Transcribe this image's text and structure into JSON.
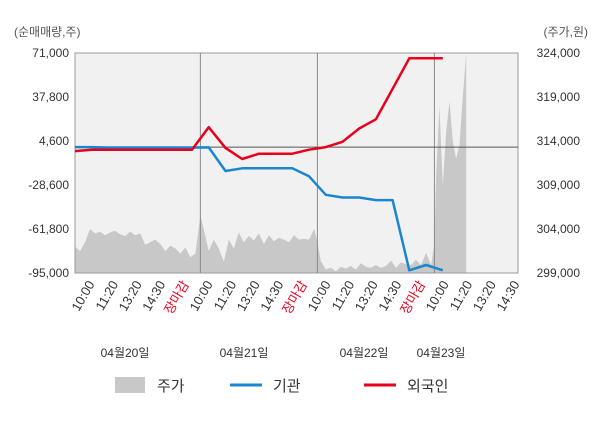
{
  "chart_data": {
    "type": "line",
    "left_axis_unit": "(순매매량,주)",
    "right_axis_unit": "(주가,원)",
    "left_ticks": [
      "71,000",
      "37,800",
      "4,600",
      "-28,600",
      "-61,800",
      "-95,000"
    ],
    "left_tick_values": [
      71000,
      37800,
      4600,
      -28600,
      -61800,
      -95000
    ],
    "right_ticks": [
      "324,000",
      "319,000",
      "314,000",
      "309,000",
      "304,000",
      "299,000"
    ],
    "right_tick_values": [
      324000,
      319000,
      314000,
      309000,
      304000,
      299000
    ],
    "left_range": [
      -95000,
      71000
    ],
    "right_range": [
      299000,
      324000
    ],
    "x_tick_labels": [
      "10:00",
      "11:20",
      "13:20",
      "14:30",
      "장마감",
      "10:00",
      "11:20",
      "13:20",
      "14:30",
      "장마감",
      "10:00",
      "11:20",
      "13:20",
      "14:30",
      "장마감",
      "10:00",
      "11:20",
      "13:20",
      "14:30"
    ],
    "x_tick_red": [
      false,
      false,
      false,
      false,
      true,
      false,
      false,
      false,
      false,
      true,
      false,
      false,
      false,
      false,
      true,
      false,
      false,
      false,
      false
    ],
    "day_labels": [
      "04월20일",
      "04월21일",
      "04월22일",
      "04월23일"
    ],
    "x_domain": [
      0,
      26.5
    ],
    "day_boundaries": [
      7.5,
      14.5,
      21.5
    ],
    "zero_line_value": 0,
    "series": [
      {
        "name": "기관",
        "color": "#1a86d0",
        "axis": "left",
        "x": [
          0,
          1,
          2,
          3,
          4,
          5,
          6,
          7,
          8,
          9,
          10,
          11,
          12,
          13,
          14,
          15,
          16,
          17,
          18,
          19,
          20,
          21,
          22
        ],
        "values": [
          0,
          0,
          -300,
          -300,
          -300,
          -300,
          -300,
          -300,
          -200,
          -18000,
          -16000,
          -16000,
          -16000,
          -16000,
          -22000,
          -36000,
          -38000,
          -38000,
          -40000,
          -40000,
          -93000,
          -89000,
          -93000
        ]
      },
      {
        "name": "외국인",
        "color": "#e8001c",
        "axis": "left",
        "x": [
          0,
          1,
          2,
          3,
          4,
          5,
          6,
          7,
          8,
          9,
          10,
          11,
          12,
          13,
          14,
          15,
          16,
          17,
          18,
          19,
          20,
          21,
          22
        ],
        "values": [
          -3000,
          -2000,
          -2000,
          -2000,
          -2000,
          -2000,
          -2000,
          -2000,
          15000,
          -600,
          -9000,
          -5000,
          -5000,
          -5000,
          -2000,
          0,
          4000,
          14000,
          21000,
          44000,
          67000,
          67000,
          67000
        ]
      },
      {
        "name": "주가",
        "color": "#c8c8c8",
        "axis": "right",
        "type": "area",
        "x": [
          0,
          0.3,
          0.6,
          0.9,
          1.2,
          1.5,
          1.8,
          2.1,
          2.4,
          2.7,
          3.0,
          3.3,
          3.6,
          3.9,
          4.2,
          4.5,
          4.8,
          5.1,
          5.4,
          5.7,
          6.0,
          6.3,
          6.6,
          6.9,
          7.2,
          7.5,
          7.7,
          8.0,
          8.3,
          8.6,
          8.9,
          9.2,
          9.5,
          9.8,
          10.1,
          10.4,
          10.7,
          11.0,
          11.3,
          11.6,
          11.9,
          12.2,
          12.5,
          12.8,
          13.1,
          13.4,
          13.7,
          14.0,
          14.3,
          14.5,
          14.7,
          15.0,
          15.3,
          15.6,
          15.9,
          16.2,
          16.5,
          16.8,
          17.1,
          17.4,
          17.7,
          18.0,
          18.3,
          18.6,
          18.9,
          19.2,
          19.5,
          19.8,
          20.1,
          20.4,
          20.7,
          21.0,
          21.3,
          21.5,
          21.6,
          21.8,
          22.0,
          22.2,
          22.4,
          22.6,
          22.8,
          23.0,
          23.2,
          23.4
        ],
        "values": [
          302000,
          301500,
          302500,
          304000,
          303500,
          303700,
          303300,
          303600,
          303800,
          303400,
          303200,
          303700,
          303300,
          303500,
          302200,
          302500,
          302800,
          302300,
          301500,
          302100,
          301800,
          301200,
          301900,
          300800,
          301200,
          305500,
          304000,
          301500,
          302800,
          301800,
          300300,
          302800,
          301800,
          303600,
          302500,
          303200,
          302700,
          303500,
          302300,
          303300,
          302600,
          303000,
          302800,
          302500,
          303300,
          302800,
          302900,
          302800,
          304000,
          302600,
          300400,
          299400,
          299600,
          299200,
          299700,
          299500,
          299800,
          299400,
          300100,
          299700,
          299600,
          299900,
          299600,
          299800,
          300400,
          299600,
          300200,
          300000,
          299900,
          300500,
          299900,
          301300,
          299900,
          302300,
          310000,
          318000,
          309000,
          315000,
          318500,
          314000,
          312000,
          313500,
          319000,
          324000
        ]
      }
    ]
  }
}
